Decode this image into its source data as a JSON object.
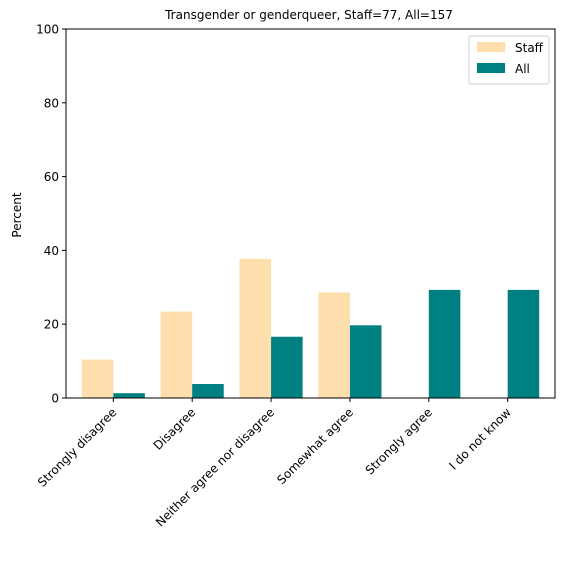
{
  "chart_data": {
    "type": "bar",
    "title": "Transgender or genderqueer, Staff=77, All=157",
    "xlabel": "",
    "ylabel": "Percent",
    "ylim": [
      0,
      100
    ],
    "yticks": [
      0,
      20,
      40,
      60,
      80,
      100
    ],
    "grid": false,
    "legend_position": "top-right",
    "categories": [
      "Strongly disagree",
      "Disagree",
      "Neither agree nor disagree",
      "Somewhat agree",
      "Strongly agree",
      "I do not know"
    ],
    "series": [
      {
        "name": "Staff",
        "color": "#ffdead",
        "values": [
          10.4,
          23.4,
          37.7,
          28.6,
          0,
          0
        ]
      },
      {
        "name": "All",
        "color": "#008080",
        "values": [
          1.3,
          3.8,
          16.6,
          19.7,
          29.3,
          29.3
        ]
      }
    ]
  }
}
